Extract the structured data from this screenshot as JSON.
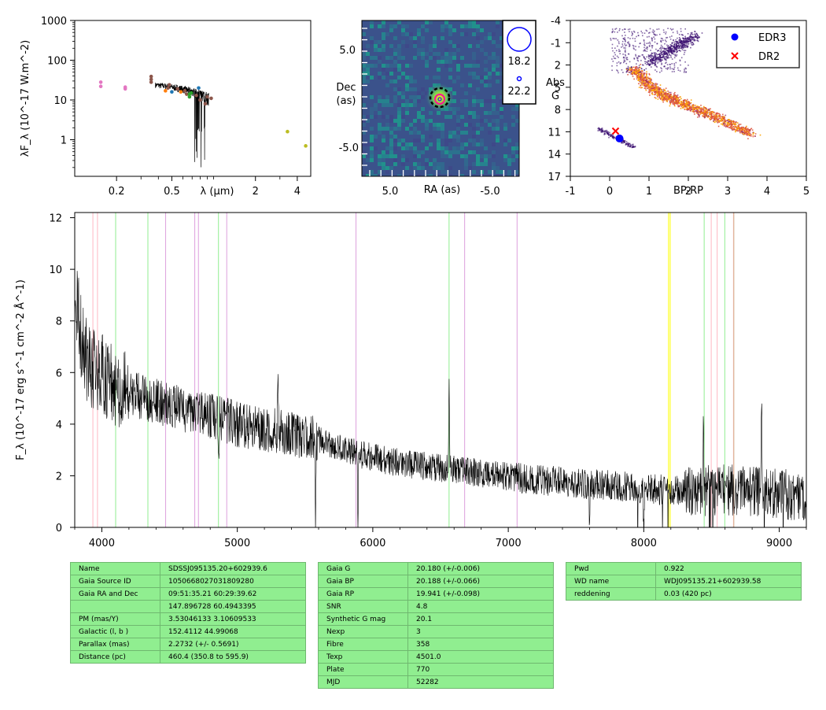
{
  "sed": {
    "ylabel": "λF_λ (10^-17 W.m^-2)",
    "xlabel": "λ (μm)",
    "yticks": [
      "1000",
      "100",
      "10",
      "1"
    ],
    "xticks": [
      "0.2",
      "0.5",
      "2",
      "4"
    ],
    "chart_data": {
      "type": "scatter",
      "xlim": [
        0.1,
        5.0
      ],
      "ylim": [
        0.12,
        1000
      ],
      "xscale": "log",
      "yscale": "log",
      "points": [
        {
          "x": 0.154,
          "y": 28,
          "color": "#e377c2"
        },
        {
          "x": 0.154,
          "y": 22,
          "color": "#e377c2"
        },
        {
          "x": 0.231,
          "y": 21,
          "color": "#e377c2"
        },
        {
          "x": 0.231,
          "y": 19,
          "color": "#e377c2"
        },
        {
          "x": 0.355,
          "y": 39,
          "color": "#8c564b"
        },
        {
          "x": 0.355,
          "y": 33,
          "color": "#8c564b"
        },
        {
          "x": 0.355,
          "y": 28,
          "color": "#8c564b"
        },
        {
          "x": 0.469,
          "y": 20,
          "color": "#8c564b"
        },
        {
          "x": 0.48,
          "y": 24,
          "color": "#8c564b"
        },
        {
          "x": 0.45,
          "y": 17,
          "color": "#ff7f0e"
        },
        {
          "x": 0.5,
          "y": 16,
          "color": "#1f77b4"
        },
        {
          "x": 0.55,
          "y": 19,
          "color": "#8c564b"
        },
        {
          "x": 0.58,
          "y": 16,
          "color": "#ff7f0e"
        },
        {
          "x": 0.62,
          "y": 17,
          "color": "#8c564b"
        },
        {
          "x": 0.64,
          "y": 14,
          "color": "#8c564b"
        },
        {
          "x": 0.67,
          "y": 14,
          "color": "#2ca02c"
        },
        {
          "x": 0.67,
          "y": 12,
          "color": "#2ca02c"
        },
        {
          "x": 0.69,
          "y": 15,
          "color": "#2ca02c"
        },
        {
          "x": 0.75,
          "y": 13,
          "color": "#8c564b"
        },
        {
          "x": 0.78,
          "y": 20,
          "color": "#1f77b4"
        },
        {
          "x": 0.8,
          "y": 10,
          "color": "#8c564b"
        },
        {
          "x": 0.87,
          "y": 8,
          "color": "#8c564b"
        },
        {
          "x": 0.9,
          "y": 12,
          "color": "#8c564b"
        },
        {
          "x": 0.96,
          "y": 11,
          "color": "#8c564b"
        },
        {
          "x": 3.4,
          "y": 1.6,
          "color": "#bcbd22"
        },
        {
          "x": 4.6,
          "y": 0.7,
          "color": "#bcbd22"
        }
      ]
    }
  },
  "image": {
    "ylabel_1": "Dec",
    "ylabel_2": "(as)",
    "xlabel": "RA (as)",
    "xticks": [
      "5.0",
      "-5.0"
    ],
    "yticks": [
      "5.0",
      "-5.0"
    ],
    "legend": [
      "18.2",
      "22.2"
    ]
  },
  "cmd": {
    "ylabel_1": "Abs",
    "ylabel_2": "G",
    "xlabel": "BP-RP",
    "yticks": [
      "-4",
      "-1",
      "2",
      "5",
      "8",
      "11",
      "14",
      "17"
    ],
    "xticks": [
      "-1",
      "0",
      "1",
      "2",
      "3",
      "4",
      "5"
    ],
    "legend": [
      {
        "label": "EDR3",
        "color": "#0000ff"
      },
      {
        "label": "DR2",
        "color": "#ff0000"
      }
    ],
    "chart_data": {
      "type": "scatter",
      "xlim": [
        -1,
        5
      ],
      "ylim": [
        17,
        -4
      ],
      "points": [
        {
          "series": "EDR3",
          "x": 0.25,
          "y": 11.9
        },
        {
          "series": "DR2",
          "x": 0.15,
          "y": 10.9
        }
      ]
    }
  },
  "spectrum": {
    "ylabel": "F_λ (10^-17 erg s^-1 cm^-2 Å^-1)",
    "yticks": [
      "0",
      "2",
      "4",
      "6",
      "8",
      "10",
      "12"
    ],
    "xticks": [
      "4000",
      "5000",
      "6000",
      "7000",
      "8000",
      "9000"
    ],
    "chart_data": {
      "type": "line",
      "xlim": [
        3800,
        9200
      ],
      "ylim": [
        0,
        12.2
      ],
      "continuum": [
        [
          3800,
          9.5
        ],
        [
          3850,
          7.2
        ],
        [
          3900,
          6.3
        ],
        [
          4000,
          5.9
        ],
        [
          4100,
          5.4
        ],
        [
          4200,
          5.2
        ],
        [
          4400,
          4.9
        ],
        [
          4600,
          4.6
        ],
        [
          4800,
          4.3
        ],
        [
          5000,
          4.0
        ],
        [
          5200,
          3.8
        ],
        [
          5400,
          3.6
        ],
        [
          5600,
          3.4
        ],
        [
          5800,
          3.0
        ],
        [
          6000,
          2.7
        ],
        [
          6200,
          2.5
        ],
        [
          6500,
          2.3
        ],
        [
          6800,
          2.1
        ],
        [
          7100,
          1.9
        ],
        [
          7400,
          1.75
        ],
        [
          7700,
          1.65
        ],
        [
          8000,
          1.5
        ],
        [
          8300,
          1.4
        ],
        [
          8600,
          1.45
        ],
        [
          8900,
          1.4
        ],
        [
          9200,
          1.2
        ]
      ],
      "features": [
        {
          "x": 5578,
          "dy": -3.2
        },
        {
          "x": 5890,
          "dy": -2.8
        },
        {
          "x": 6563,
          "dy": 4.0
        },
        {
          "x": 5300,
          "dy": 3.5
        },
        {
          "x": 8440,
          "dy": 3.0
        },
        {
          "x": 8870,
          "dy": 3.5
        },
        {
          "x": 4863,
          "dy": -1.2
        },
        {
          "x": 7600,
          "dy": -2.0
        },
        {
          "x": 8000,
          "dy": -2.0
        }
      ],
      "lines": [
        {
          "x": 3934,
          "color": "#ffb6c1"
        },
        {
          "x": 3968,
          "color": "#ffb6c1"
        },
        {
          "x": 4102,
          "color": "#90ee90"
        },
        {
          "x": 4340,
          "color": "#90ee90"
        },
        {
          "x": 4471,
          "color": "#dda0dd"
        },
        {
          "x": 4686,
          "color": "#dda0dd"
        },
        {
          "x": 4713,
          "color": "#dda0dd"
        },
        {
          "x": 4861,
          "color": "#90ee90"
        },
        {
          "x": 4922,
          "color": "#dda0dd"
        },
        {
          "x": 5876,
          "color": "#dda0dd"
        },
        {
          "x": 6563,
          "color": "#90ee90"
        },
        {
          "x": 6678,
          "color": "#dda0dd"
        },
        {
          "x": 7065,
          "color": "#dda0dd"
        },
        {
          "x": 8183,
          "color": "#ffff00"
        },
        {
          "x": 8195,
          "color": "#ffff00"
        },
        {
          "x": 8446,
          "color": "#90ee90"
        },
        {
          "x": 8498,
          "color": "#ffb6c1"
        },
        {
          "x": 8542,
          "color": "#ffb6c1"
        },
        {
          "x": 8598,
          "color": "#90ee90"
        },
        {
          "x": 8662,
          "color": "#ffb6c1"
        },
        {
          "x": 8665,
          "color": "#d2b48c"
        }
      ]
    }
  },
  "tables": [
    [
      [
        "Name",
        "SDSSJ095135.20+602939.6"
      ],
      [
        "Gaia Source ID",
        "1050668027031809280"
      ],
      [
        "Gaia RA and Dec",
        "09:51:35.21    60:29:39.62"
      ],
      [
        "",
        "147.896728    60.4943395"
      ],
      [
        "PM (mas/Y)",
        "3.53046133    3.10609533"
      ],
      [
        "Galactic (l, b )",
        "152.4112    44.99068"
      ],
      [
        "Parallax (mas)",
        "2.2732 (+/- 0.5691)"
      ],
      [
        "Distance (pc)",
        "460.4 (350.8 to 595.9)"
      ]
    ],
    [
      [
        "Gaia G",
        "20.180 (+/-0.006)"
      ],
      [
        "Gaia BP",
        "20.188 (+/-0.066)"
      ],
      [
        "Gaia RP",
        "19.941 (+/-0.098)"
      ],
      [
        "SNR",
        "4.8"
      ],
      [
        "Synthetic G mag",
        "20.1"
      ],
      [
        "Nexp",
        "3"
      ],
      [
        "Fibre",
        "358"
      ],
      [
        "Texp",
        "4501.0"
      ],
      [
        "Plate",
        "770"
      ],
      [
        "MJD",
        "52282"
      ]
    ],
    [
      [
        "Pwd",
        "0.922"
      ],
      [
        "WD name",
        "WDJ095135.21+602939.58"
      ],
      [
        "reddening",
        "0.03 (420 pc)"
      ]
    ]
  ]
}
